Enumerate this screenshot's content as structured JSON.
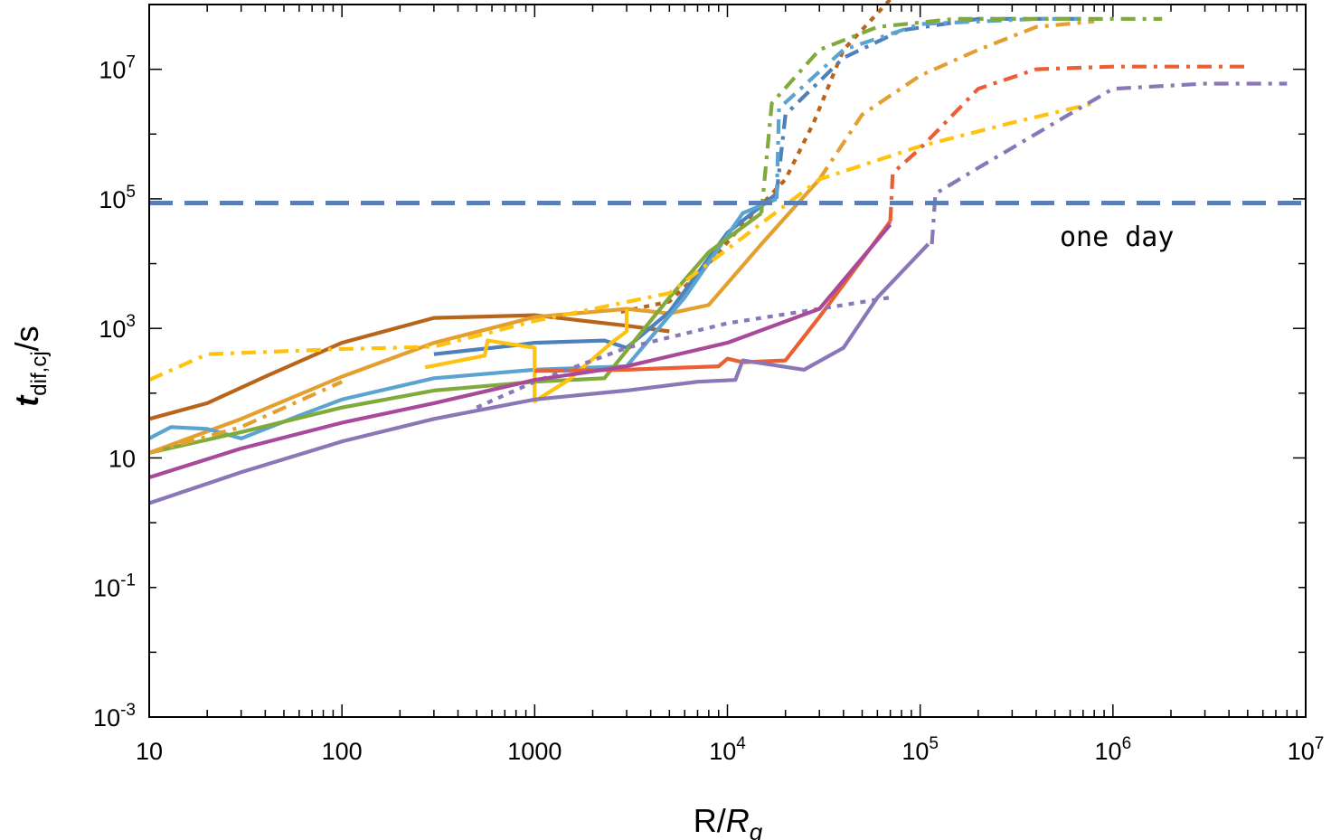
{
  "chart_data": {
    "type": "line",
    "xscale": "log",
    "yscale": "log",
    "xlim": [
      10,
      10000000
    ],
    "ylim": [
      0.001,
      100000000
    ],
    "xlabel": {
      "main": "R/",
      "italic": "R",
      "sub": "g"
    },
    "ylabel": {
      "main": "t",
      "sub": "dif,cj",
      "tail": "/s"
    },
    "x_tick_labels": [
      {
        "value": 10,
        "base": "10",
        "exp": ""
      },
      {
        "value": 100,
        "base": "100",
        "exp": ""
      },
      {
        "value": 1000,
        "base": "1000",
        "exp": ""
      },
      {
        "value": 10000,
        "base": "10",
        "exp": "4"
      },
      {
        "value": 100000,
        "base": "10",
        "exp": "5"
      },
      {
        "value": 1000000,
        "base": "10",
        "exp": "6"
      },
      {
        "value": 10000000,
        "base": "10",
        "exp": "7"
      }
    ],
    "y_tick_labels": [
      {
        "value": 0.001,
        "base": "10",
        "exp": "-3"
      },
      {
        "value": 0.1,
        "base": "10",
        "exp": "-1"
      },
      {
        "value": 10,
        "base": "10",
        "exp": ""
      },
      {
        "value": 1000,
        "base": "10",
        "exp": "3"
      },
      {
        "value": 100000,
        "base": "10",
        "exp": "5"
      },
      {
        "value": 10000000,
        "base": "10",
        "exp": "7"
      }
    ],
    "reference_line": {
      "y": 86400,
      "color": "#5a7eb6",
      "label": "one day"
    },
    "series": [
      {
        "color": "#b8651b",
        "dash": "solid",
        "points": [
          [
            10,
            40
          ],
          [
            20,
            70
          ],
          [
            40,
            180
          ],
          [
            100,
            600
          ],
          [
            300,
            1450
          ],
          [
            1000,
            1600
          ],
          [
            3000,
            1100
          ],
          [
            5000,
            900
          ]
        ]
      },
      {
        "color": "#b8651b",
        "dash": "dotted",
        "points": [
          [
            2800,
            1800
          ],
          [
            5000,
            2600
          ],
          [
            8000,
            10000
          ],
          [
            12000,
            40000
          ],
          [
            20000,
            200000
          ],
          [
            28000,
            1500000
          ],
          [
            40000,
            20000000
          ],
          [
            70000,
            120000000
          ]
        ]
      },
      {
        "color": "#e3a02e",
        "dash": "solid",
        "points": [
          [
            10,
            12
          ],
          [
            30,
            40
          ],
          [
            100,
            180
          ],
          [
            300,
            600
          ],
          [
            1000,
            1500
          ],
          [
            3000,
            2000
          ],
          [
            5000,
            1700
          ],
          [
            8000,
            2300
          ],
          [
            15000,
            20000
          ],
          [
            30000,
            200000
          ]
        ]
      },
      {
        "color": "#e3a02e",
        "dash": "dashdot",
        "points": [
          [
            30000,
            200000
          ],
          [
            50000,
            2000000
          ],
          [
            100000,
            8000000
          ],
          [
            200000,
            20000000
          ],
          [
            400000,
            45000000
          ],
          [
            800000,
            55000000
          ]
        ]
      },
      {
        "color": "#4e80bb",
        "dash": "solid",
        "points": [
          [
            300,
            400
          ],
          [
            800,
            550
          ],
          [
            1000,
            600
          ],
          [
            2300,
            650
          ],
          [
            3000,
            500
          ],
          [
            5000,
            1800
          ],
          [
            10000,
            30000
          ],
          [
            18000,
            120000
          ]
        ]
      },
      {
        "color": "#4e80bb",
        "dash": "dashdot",
        "points": [
          [
            18000,
            120000
          ],
          [
            20000,
            2000000
          ],
          [
            40000,
            15000000
          ],
          [
            80000,
            40000000
          ],
          [
            200000,
            60000000
          ],
          [
            700000,
            60000000
          ]
        ]
      },
      {
        "color": "#5ba4d0",
        "dash": "solid",
        "points": [
          [
            10,
            20
          ],
          [
            13,
            30
          ],
          [
            20,
            28
          ],
          [
            30,
            20
          ],
          [
            60,
            45
          ],
          [
            100,
            80
          ],
          [
            300,
            170
          ],
          [
            1000,
            230
          ],
          [
            3000,
            260
          ],
          [
            6000,
            3000
          ],
          [
            12000,
            60000
          ],
          [
            18000,
            100000
          ]
        ]
      },
      {
        "color": "#5ba4d0",
        "dash": "dashdot",
        "points": [
          [
            18000,
            100000
          ],
          [
            18500,
            2500000
          ],
          [
            40000,
            20000000
          ],
          [
            100000,
            50000000
          ],
          [
            400000,
            60000000
          ],
          [
            700000,
            60000000
          ]
        ]
      },
      {
        "color": "#80aa3b",
        "dash": "solid",
        "points": [
          [
            10,
            12
          ],
          [
            30,
            25
          ],
          [
            100,
            60
          ],
          [
            300,
            110
          ],
          [
            1000,
            150
          ],
          [
            2300,
            170
          ],
          [
            5000,
            3000
          ],
          [
            8000,
            15000
          ],
          [
            15000,
            60000
          ]
        ]
      },
      {
        "color": "#80aa3b",
        "dash": "dashdot",
        "points": [
          [
            15000,
            60000
          ],
          [
            17000,
            3000000
          ],
          [
            30000,
            20000000
          ],
          [
            60000,
            45000000
          ],
          [
            150000,
            60000000
          ],
          [
            1800000,
            60000000
          ]
        ]
      },
      {
        "color": "#ffc20e",
        "dash": "dashdot",
        "points": [
          [
            10,
            160
          ],
          [
            20,
            400
          ],
          [
            100,
            480
          ],
          [
            300,
            520
          ],
          [
            1000,
            1300
          ],
          [
            5000,
            3500
          ],
          [
            20000,
            80000
          ],
          [
            30000,
            200000
          ],
          [
            100000,
            650000
          ],
          [
            300000,
            1500000
          ],
          [
            800000,
            3000000
          ]
        ]
      },
      {
        "color": "#ffc20e",
        "dash": "solid",
        "points": [
          [
            270,
            250
          ],
          [
            550,
            380
          ],
          [
            570,
            650
          ],
          [
            1000,
            500
          ],
          [
            1000,
            75
          ],
          [
            1500,
            160
          ],
          [
            2500,
            600
          ],
          [
            3000,
            900
          ],
          [
            3000,
            2000
          ]
        ]
      },
      {
        "color": "#ea5f34",
        "dash": "solid",
        "points": [
          [
            1000,
            220
          ],
          [
            3000,
            230
          ],
          [
            9000,
            260
          ],
          [
            10000,
            340
          ],
          [
            12000,
            300
          ],
          [
            20000,
            320
          ],
          [
            30000,
            1500
          ],
          [
            70000,
            45000
          ]
        ]
      },
      {
        "color": "#ea5f34",
        "dash": "dashdot",
        "points": [
          [
            70000,
            45000
          ],
          [
            72000,
            250000
          ],
          [
            100000,
            600000
          ],
          [
            200000,
            5000000
          ],
          [
            400000,
            10000000
          ],
          [
            1000000,
            11000000
          ],
          [
            5000000,
            11000000
          ]
        ]
      },
      {
        "color": "#8a77b7",
        "dash": "solid",
        "points": [
          [
            10,
            2
          ],
          [
            30,
            6
          ],
          [
            100,
            18
          ],
          [
            300,
            40
          ],
          [
            1000,
            80
          ],
          [
            3000,
            110
          ],
          [
            7000,
            150
          ],
          [
            11000,
            160
          ],
          [
            12000,
            320
          ],
          [
            25000,
            230
          ],
          [
            40000,
            500
          ],
          [
            60000,
            3000
          ],
          [
            110000,
            20000
          ]
        ]
      },
      {
        "color": "#8a77b7",
        "dash": "dotted",
        "points": [
          [
            500,
            60
          ],
          [
            1000,
            150
          ],
          [
            3000,
            500
          ],
          [
            10000,
            1200
          ],
          [
            30000,
            2000
          ],
          [
            70000,
            3000
          ]
        ]
      },
      {
        "color": "#8a77b7",
        "dash": "dashdot",
        "points": [
          [
            115000,
            20000
          ],
          [
            120000,
            120000
          ],
          [
            200000,
            300000
          ],
          [
            500000,
            1500000
          ],
          [
            1000000,
            5000000
          ],
          [
            3000000,
            6000000
          ],
          [
            8000000,
            6000000
          ]
        ]
      },
      {
        "color": "#a9499a",
        "dash": "solid",
        "points": [
          [
            10,
            5
          ],
          [
            30,
            14
          ],
          [
            100,
            35
          ],
          [
            300,
            70
          ],
          [
            1000,
            160
          ],
          [
            3000,
            260
          ],
          [
            10000,
            600
          ],
          [
            30000,
            2000
          ],
          [
            70000,
            40000
          ]
        ]
      },
      {
        "color": "#e3a02e",
        "dash": "dashdot",
        "points": [
          [
            10,
            12
          ],
          [
            30,
            30
          ],
          [
            100,
            150
          ]
        ]
      }
    ]
  }
}
